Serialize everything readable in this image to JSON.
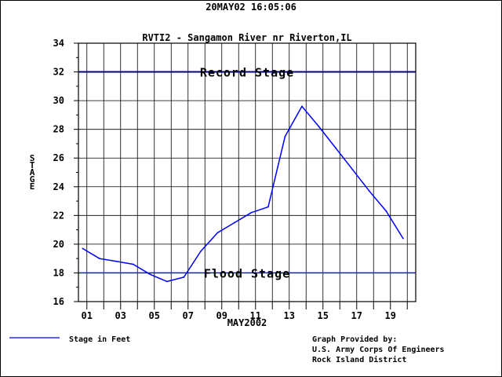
{
  "header": {
    "timestamp": "20MAY02   16:05:06"
  },
  "chart_data": {
    "type": "line",
    "title": "RVTI2 - Sangamon River nr Riverton,IL",
    "xlabel": "MAY2002",
    "ylabel": "STAGE",
    "ylim": [
      16,
      34
    ],
    "xlim": [
      0.5,
      20.5
    ],
    "y_ticks": [
      16,
      18,
      20,
      22,
      24,
      26,
      28,
      30,
      32,
      34
    ],
    "x_tick_labels": [
      {
        "day": 1,
        "label": "01"
      },
      {
        "day": 3,
        "label": "03"
      },
      {
        "day": 5,
        "label": "05"
      },
      {
        "day": 7,
        "label": "07"
      },
      {
        "day": 9,
        "label": "09"
      },
      {
        "day": 11,
        "label": "11"
      },
      {
        "day": 13,
        "label": "13"
      },
      {
        "day": 15,
        "label": "15"
      },
      {
        "day": 17,
        "label": "17"
      },
      {
        "day": 19,
        "label": "19"
      }
    ],
    "grid": true,
    "series": [
      {
        "name": "Stage in Feet",
        "color": "#0000ff",
        "x": [
          0.75,
          1.75,
          2.75,
          3.75,
          4.75,
          5.75,
          6.75,
          7.75,
          8.75,
          9.75,
          10.75,
          11.75,
          12.75,
          13.75,
          14.75,
          15.75,
          16.75,
          17.75,
          18.75,
          19.75
        ],
        "values": [
          19.7,
          19.0,
          18.8,
          18.6,
          17.9,
          17.4,
          17.7,
          19.5,
          20.8,
          21.5,
          22.2,
          22.6,
          27.5,
          29.6,
          28.2,
          26.7,
          25.2,
          23.7,
          22.3,
          20.4
        ]
      }
    ],
    "reference_lines": [
      {
        "name": "Record Stage",
        "value": 32,
        "color": "#000080"
      },
      {
        "name": "Flood Stage",
        "value": 18,
        "color": "#0000ff"
      }
    ],
    "legend": {
      "position": "bottom-left",
      "label": "Stage in Feet"
    }
  },
  "credit": {
    "line1": "Graph Provided by:",
    "line2": "U.S. Army Corps Of Engineers",
    "line3": "Rock Island District"
  }
}
